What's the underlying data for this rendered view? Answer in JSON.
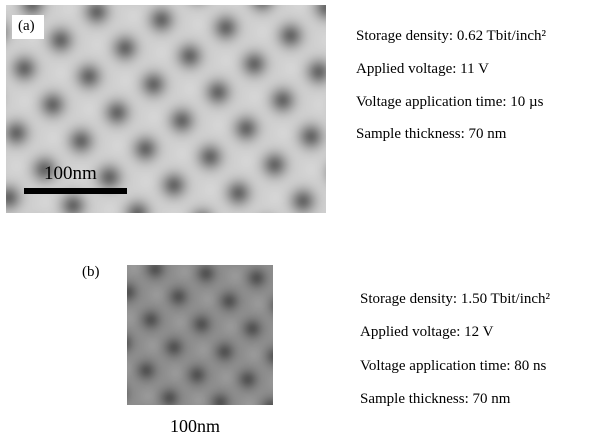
{
  "panels": [
    {
      "label": "(a)",
      "scale_bar": "100nm",
      "lines": [
        "Storage density: 0.62 Tbit/inch²",
        "Applied voltage: 11 V",
        "Voltage application time: 10 µs",
        "Sample thickness: 70 nm"
      ]
    },
    {
      "label": "(b)",
      "scale_bar": "100nm",
      "lines": [
        "Storage density: 1.50 Tbit/inch²",
        "Applied voltage: 12 V",
        "Voltage application time: 80 ns",
        "Sample thickness: 70 nm"
      ]
    }
  ]
}
